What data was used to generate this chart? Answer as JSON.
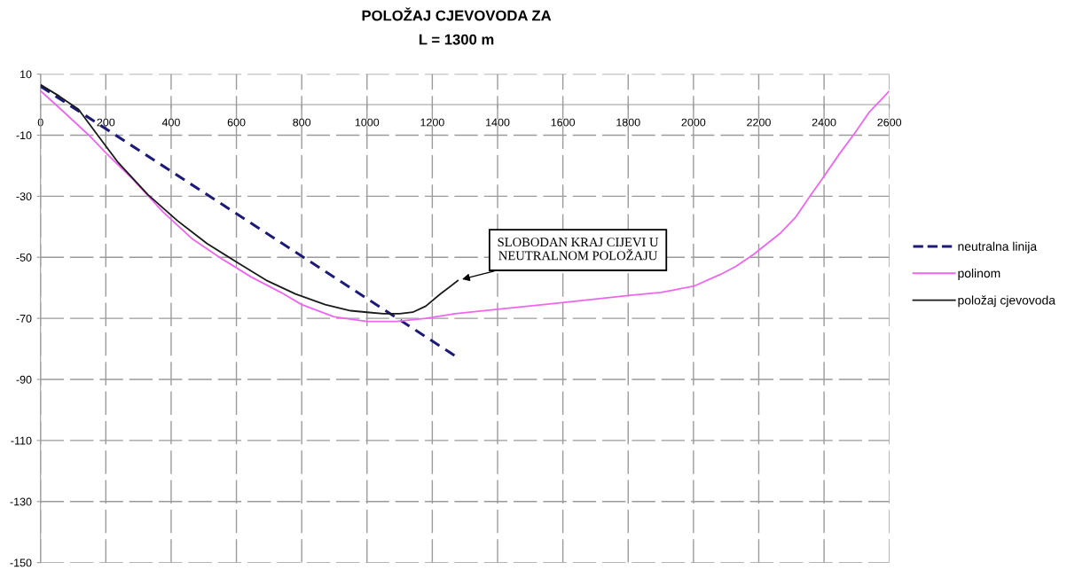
{
  "chart_data": {
    "type": "line",
    "title": "POLOŽAJ CJEVOVODA ZA",
    "subtitle": "L = 1300 m",
    "series": [
      {
        "name": "neutralna linija",
        "color": "#1c1c78",
        "line_style": "dashed",
        "x": [
          0,
          1280
        ],
        "values": [
          6,
          -83
        ]
      },
      {
        "name": "polinom",
        "color": "#ee66ee",
        "line_style": "solid",
        "x": [
          0,
          57,
          148,
          202,
          283,
          374,
          465,
          555,
          646,
          736,
          800,
          899,
          1000,
          1089,
          1180,
          1270,
          1400,
          1540,
          1630,
          1800,
          1900,
          2000,
          2085,
          2130,
          2185,
          2267,
          2312,
          2357,
          2393,
          2448,
          2493,
          2538,
          2574,
          2600
        ],
        "values": [
          4.5,
          -1,
          -10,
          -16,
          -24.5,
          -35,
          -44,
          -50.5,
          -56.5,
          -61.5,
          -65.5,
          -69.5,
          -71,
          -71,
          -70,
          -68.5,
          -67,
          -65.5,
          -64.5,
          -62.5,
          -61.5,
          -59.5,
          -55.5,
          -53,
          -49,
          -42,
          -37,
          -30,
          -24.5,
          -16,
          -9.5,
          -2.5,
          1.5,
          4.5
        ]
      },
      {
        "name": "položaj cjevovoda",
        "color": "#1a1a1a",
        "line_style": "solid",
        "x": [
          0,
          57,
          116,
          175,
          238,
          329,
          419,
          510,
          600,
          691,
          781,
          872,
          950,
          1000,
          1050,
          1100,
          1140,
          1180,
          1225,
          1280
        ],
        "values": [
          6.5,
          2.8,
          -1.5,
          -10,
          -19,
          -29.5,
          -38,
          -45.5,
          -51.5,
          -57.5,
          -62,
          -65.5,
          -67.5,
          -68,
          -68.5,
          -68.5,
          -68,
          -66,
          -62,
          -57.5
        ]
      }
    ],
    "xlim": [
      0,
      2600
    ],
    "xticks": [
      0,
      200,
      400,
      600,
      800,
      1000,
      1200,
      1400,
      1600,
      1800,
      2000,
      2200,
      2400,
      2600
    ],
    "ylim": [
      -150,
      10
    ],
    "yticks": [
      10,
      -10,
      -30,
      -50,
      -70,
      -90,
      -110,
      -130,
      -150
    ],
    "grid": true,
    "legend": "right",
    "annotations": [
      {
        "text": "SLOBODAN KRAJ CIJEVI U\nNEUTRALNOM POLOŽAJU",
        "x": 1280,
        "y": -57.5
      }
    ]
  }
}
